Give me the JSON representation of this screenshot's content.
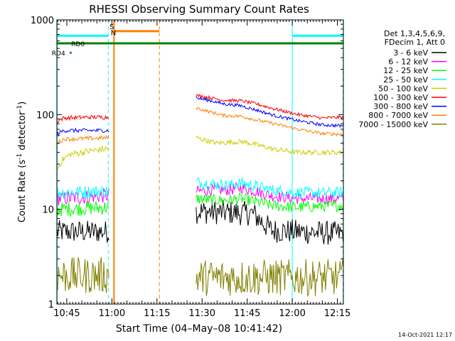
{
  "chart_data": {
    "type": "line",
    "title": "RHESSI Observing Summary Count Rates",
    "xlabel": "Start Time (04–May–08 10:41:42)",
    "ylabel_main": "Count Rate (s",
    "ylabel_sup1": "-1",
    "ylabel_mid": " detector",
    "ylabel_sup2": "-1",
    "ylabel_end": ")",
    "yscale": "log",
    "ylim": [
      1,
      1000
    ],
    "xlim_min": [
      41.7,
      137.0
    ],
    "x_ticks": [
      {
        "min": 45,
        "label": "10:45"
      },
      {
        "min": 60,
        "label": "11:00"
      },
      {
        "min": 75,
        "label": "11:15"
      },
      {
        "min": 90,
        "label": "11:30"
      },
      {
        "min": 105,
        "label": "11:45"
      },
      {
        "min": 120,
        "label": "12:00"
      },
      {
        "min": 135,
        "label": "12:15"
      }
    ],
    "y_ticks": [
      {
        "val": 1,
        "label": "1"
      },
      {
        "val": 10,
        "label": "10"
      },
      {
        "val": 100,
        "label": "100"
      },
      {
        "val": 1000,
        "label": "1000"
      }
    ],
    "legend": {
      "placement": "right",
      "header": [
        "Det 1,3,4,5,6,9,",
        "FDecim 1, Att 0"
      ],
      "entries": [
        {
          "label": "3 - 6 keV",
          "color": "#000000"
        },
        {
          "label": "6 - 12 keV",
          "color": "#ff00ff"
        },
        {
          "label": "12 - 25 keV",
          "color": "#00ff00"
        },
        {
          "label": "25 - 50 keV",
          "color": "#00ffff"
        },
        {
          "label": "50 - 100 keV",
          "color": "#cccc00"
        },
        {
          "label": "100 - 300 keV",
          "color": "#ff0000"
        },
        {
          "label": "300 - 800 keV",
          "color": "#0000ff"
        },
        {
          "label": "800 - 7000 keV",
          "color": "#ff8000"
        },
        {
          "label": "7000 - 15000 keV",
          "color": "#808000"
        }
      ]
    },
    "series": [
      {
        "name": "3 - 6 keV",
        "color": "#000000",
        "segments": [
          {
            "x": [
              41.7,
              59.0
            ],
            "y": [
              5.8,
              5.8
            ],
            "noise": 0.28
          },
          {
            "x": [
              88.0,
              101.0,
              107.0,
              113.0,
              137.0
            ],
            "y": [
              9.5,
              9.2,
              9.0,
              6.0,
              5.5
            ],
            "noise": 0.3
          }
        ]
      },
      {
        "name": "6 - 12 keV",
        "color": "#ff00ff",
        "segments": [
          {
            "x": [
              41.7,
              43.0,
              59.0
            ],
            "y": [
              13,
              13,
              14
            ],
            "noise": 0.18
          },
          {
            "x": [
              88.0,
              93.0,
              99.0,
              103.0,
              108.0,
              113.0,
              121.0,
              137.0
            ],
            "y": [
              15.5,
              16.0,
              16.0,
              17.0,
              15.5,
              14.0,
              13.0,
              13.0
            ],
            "noise": 0.14
          }
        ]
      },
      {
        "name": "12 - 25 keV",
        "color": "#00ff00",
        "segments": [
          {
            "x": [
              41.7,
              59.0
            ],
            "y": [
              10,
              10.5
            ],
            "noise": 0.18
          },
          {
            "x": [
              88.0,
              93.0,
              99.0,
              103.0,
              108.0,
              113.0,
              121.0,
              137.0
            ],
            "y": [
              13.0,
              12.5,
              12.5,
              13.0,
              12.0,
              11.0,
              10.5,
              11.0
            ],
            "noise": 0.14
          }
        ]
      },
      {
        "name": "25 - 50 keV",
        "color": "#00ffff",
        "segments": [
          {
            "x": [
              41.7,
              59.0
            ],
            "y": [
              15,
              15.5
            ],
            "noise": 0.16
          },
          {
            "x": [
              88.0,
              93.0,
              99.0,
              103.0,
              108.0,
              113.0,
              121.0,
              137.0
            ],
            "y": [
              19.5,
              18.5,
              18.0,
              19.0,
              17.5,
              16.0,
              15.0,
              15.0
            ],
            "noise": 0.14
          }
        ]
      },
      {
        "name": "50 - 100 keV",
        "color": "#cccc00",
        "segments": [
          {
            "x": [
              41.7,
              43.5,
              46.0,
              52.0,
              59.0
            ],
            "y": [
              26,
              33,
              38,
              41,
              44
            ],
            "noise": 0.08
          },
          {
            "x": [
              88.0,
              95.0,
              103.0,
              106.0,
              114.0,
              122.0,
              137.0
            ],
            "y": [
              57,
              50,
              52,
              50,
              43,
              40,
              40
            ],
            "noise": 0.06
          }
        ]
      },
      {
        "name": "100 - 300 keV",
        "color": "#ff0000",
        "segments": [
          {
            "x": [
              41.7,
              44.0,
              52.0,
              59.0
            ],
            "y": [
              85,
              92,
              94,
              94
            ],
            "noise": 0.05
          },
          {
            "x": [
              88.0,
              93.0,
              97.0,
              103.0,
              108.0,
              114.0,
              122.0,
              130.0,
              137.0
            ],
            "y": [
              160,
              150,
              142,
              140,
              130,
              115,
              100,
              92,
              94
            ],
            "noise": 0.04
          }
        ]
      },
      {
        "name": "300 - 800 keV",
        "color": "#0000ff",
        "segments": [
          {
            "x": [
              41.7,
              44.0,
              52.0,
              59.0
            ],
            "y": [
              62,
              68,
              68,
              68
            ],
            "noise": 0.05
          },
          {
            "x": [
              88.0,
              93.0,
              97.0,
              103.0,
              108.0,
              114.0,
              122.0,
              130.0,
              137.0
            ],
            "y": [
              150,
              140,
              130,
              124,
              112,
              98,
              86,
              78,
              76
            ],
            "noise": 0.04
          }
        ]
      },
      {
        "name": "800 - 7000 keV",
        "color": "#ff8000",
        "segments": [
          {
            "x": [
              41.7,
              44.0,
              52.0,
              59.0
            ],
            "y": [
              50,
              55,
              56,
              57
            ],
            "noise": 0.05
          },
          {
            "x": [
              88.0,
              93.0,
              97.0,
              103.0,
              108.0,
              114.0,
              122.0,
              130.0,
              137.0
            ],
            "y": [
              118,
              106,
              98,
              96,
              88,
              80,
              70,
              63,
              62
            ],
            "noise": 0.04
          }
        ]
      },
      {
        "name": "7000 - 15000 keV",
        "color": "#808000",
        "segments": [
          {
            "x": [
              41.7,
              59.0
            ],
            "y": [
              2.0,
              2.0
            ],
            "noise": 0.45,
            "floor": 1.0
          },
          {
            "x": [
              88.0,
              137.0
            ],
            "y": [
              1.9,
              1.9
            ],
            "noise": 0.45,
            "floor": 1.0
          }
        ]
      }
    ],
    "flags": [
      {
        "name": "RD0",
        "color": "#008000",
        "x0": 41.7,
        "x1": 137.0,
        "y": 565,
        "label_x": 46.5
      },
      {
        "name": "RD4",
        "color": "#008000",
        "x0": 46.0,
        "x1": 46.6,
        "y": 450,
        "label_x": 40.0
      }
    ],
    "saa_bars": [
      {
        "color": "#00ffff",
        "x0": 41.7,
        "x1": 58.8,
        "y": 680
      },
      {
        "color": "#00ffff",
        "x0": 120.0,
        "x1": 137.0,
        "y": 680
      },
      {
        "color": "#ff8000",
        "x0": 60.7,
        "x1": 75.8,
        "y": 760
      }
    ],
    "vlines": [
      {
        "x": 41.8,
        "color": "#00ffff",
        "style": "solid"
      },
      {
        "x": 58.8,
        "color": "#00ffff",
        "style": "dashed"
      },
      {
        "x": 60.7,
        "color": "#ff8000",
        "style": "solid"
      },
      {
        "x": 75.8,
        "color": "#ff8000",
        "style": "dashed"
      },
      {
        "x": 120.0,
        "color": "#00ffff",
        "style": "solid"
      },
      {
        "x": 136.9,
        "color": "#00ffff",
        "style": "dashed"
      }
    ],
    "markers": [
      {
        "text": "S",
        "color": "#ff8000",
        "x": 59.2,
        "y": 800
      },
      {
        "text": "N",
        "color": "#00ffff",
        "x": 59.6,
        "y": 690
      }
    ],
    "footer": "14-Oct-2021 12:17"
  }
}
